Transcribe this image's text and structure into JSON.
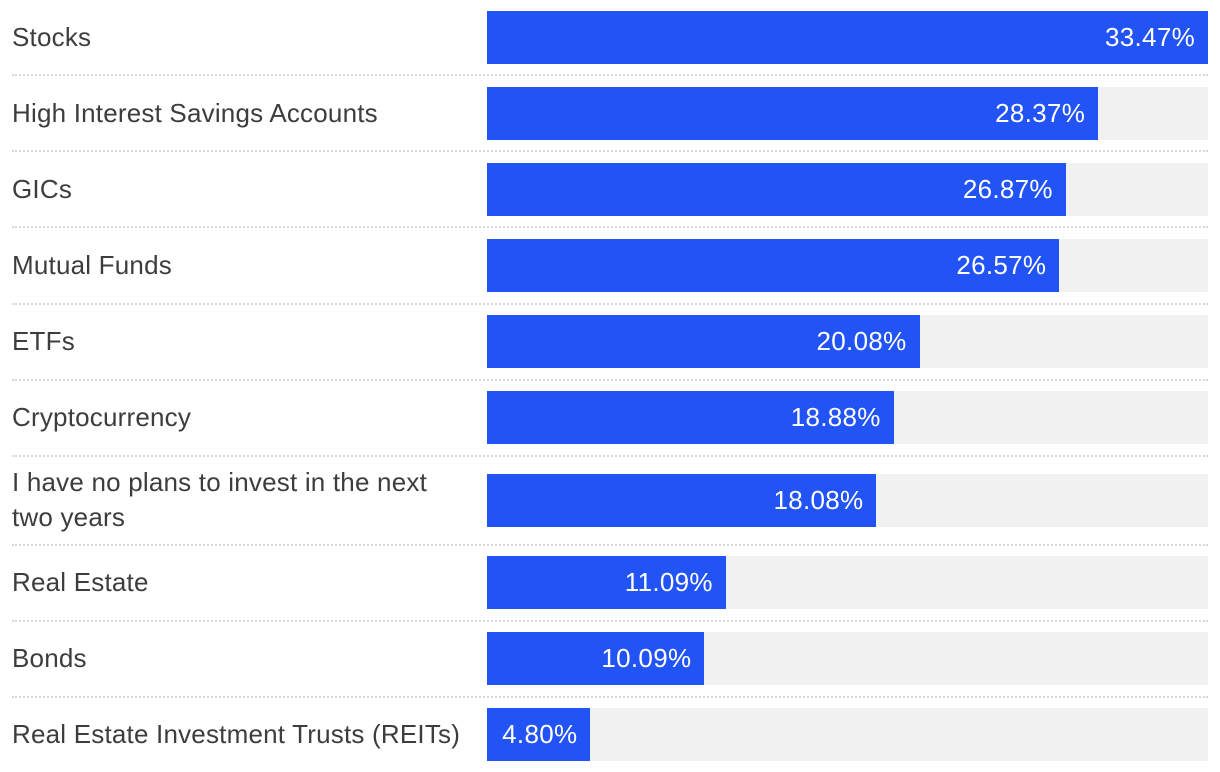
{
  "chart_data": {
    "type": "bar",
    "orientation": "horizontal",
    "title": "",
    "xlabel": "",
    "ylabel": "",
    "categories": [
      "Stocks",
      "High Interest Savings Accounts",
      "GICs",
      "Mutual Funds",
      "ETFs",
      "Cryptocurrency",
      "I have no plans to invest in the next two years",
      "Real Estate",
      "Bonds",
      "Real Estate Investment Trusts (REITs)"
    ],
    "values": [
      33.47,
      28.37,
      26.87,
      26.57,
      20.08,
      18.88,
      18.08,
      11.09,
      10.09,
      4.8
    ],
    "value_labels": [
      "33.47%",
      "28.37%",
      "26.87%",
      "26.57%",
      "20.08%",
      "18.88%",
      "18.08%",
      "11.09%",
      "10.09%",
      "4.80%"
    ],
    "bar_scale_max": 33.47,
    "xlim": [
      0,
      33.47
    ],
    "grid": false,
    "legend": false,
    "value_label_position": "inside-end",
    "colors": {
      "bar": "#2254f5",
      "track": "#f1f1f1",
      "label_text": "#3d3d3d",
      "value_text": "#ffffff",
      "separator": "#d7d7d7",
      "background": "#ffffff"
    }
  }
}
